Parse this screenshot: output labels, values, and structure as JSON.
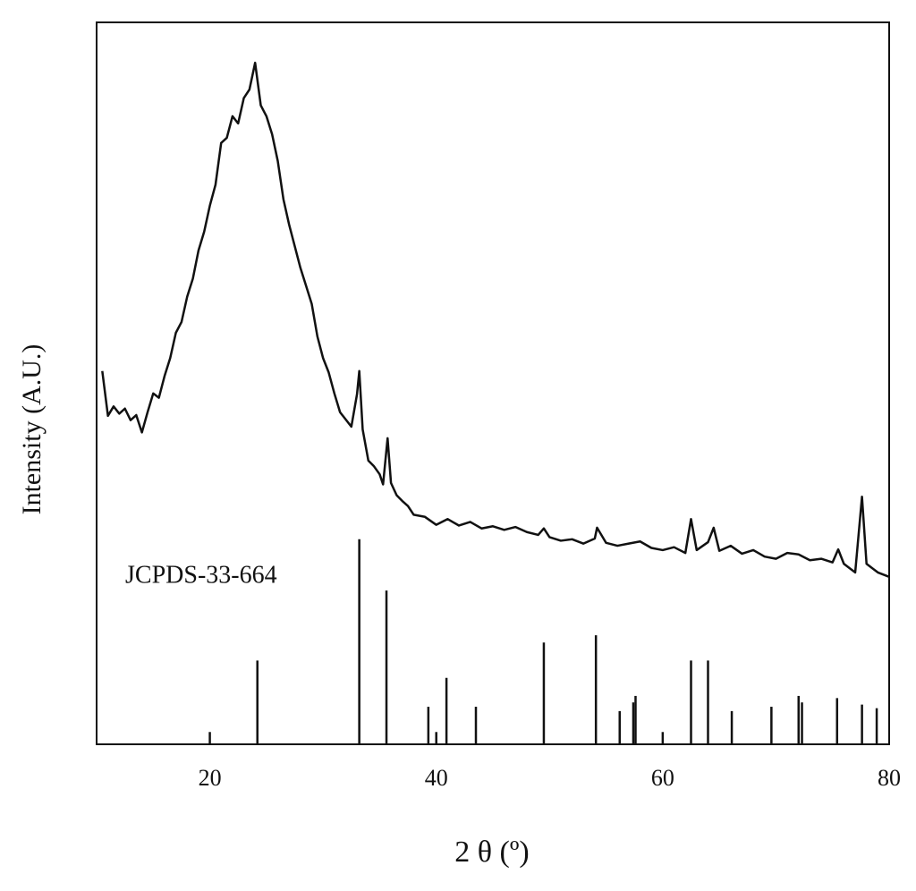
{
  "chart_data": {
    "type": "line",
    "x_label": "2 θ (º)",
    "y_label": "Intensity (A.U.)",
    "color": "#111111",
    "xlim": [
      10,
      80
    ],
    "ylim": [
      0,
      100
    ],
    "xticks": [
      20,
      40,
      60,
      80
    ],
    "x": [
      10.5,
      11,
      11.5,
      12,
      12.5,
      13,
      13.5,
      14,
      14.5,
      15,
      15.5,
      16,
      16.5,
      17,
      17.5,
      18,
      18.5,
      19,
      19.5,
      20,
      20.5,
      21,
      21.5,
      22,
      22.5,
      23,
      23.5,
      24,
      24.5,
      25,
      25.5,
      26,
      26.5,
      27,
      27.5,
      28,
      28.5,
      29,
      29.5,
      30,
      30.5,
      31,
      31.5,
      32,
      32.5,
      33,
      33.2,
      33.5,
      34,
      34.5,
      35,
      35.3,
      35.7,
      36,
      36.5,
      37,
      37.5,
      38,
      39,
      40,
      41,
      42,
      43,
      44,
      45,
      46,
      47,
      48,
      49,
      49.5,
      50,
      51,
      52,
      53,
      54,
      54.2,
      55,
      56,
      57,
      58,
      59,
      60,
      61,
      62,
      62.5,
      63,
      64,
      64.5,
      65,
      66,
      67,
      68,
      69,
      70,
      71,
      72,
      73,
      74,
      75,
      75.5,
      76,
      77,
      77.6,
      78,
      79,
      80
    ],
    "values": [
      51.7,
      45.5,
      46.8,
      45.8,
      46.5,
      44.9,
      45.6,
      43.2,
      46.0,
      48.6,
      48.0,
      51.0,
      53.5,
      57.0,
      58.5,
      62.0,
      64.5,
      68.4,
      71.0,
      74.6,
      77.5,
      83.3,
      84.0,
      87.0,
      86.0,
      89.5,
      90.7,
      94.4,
      88.5,
      87.0,
      84.5,
      80.8,
      75.5,
      72.0,
      69.0,
      66.0,
      63.5,
      61.0,
      56.5,
      53.5,
      51.5,
      48.6,
      46.0,
      45.0,
      44.0,
      48.5,
      51.7,
      43.6,
      39.3,
      38.5,
      37.4,
      36.0,
      42.4,
      36.2,
      34.5,
      33.7,
      33.0,
      31.8,
      31.5,
      30.4,
      31.2,
      30.3,
      30.8,
      29.9,
      30.2,
      29.7,
      30.1,
      29.4,
      29.0,
      29.9,
      28.7,
      28.2,
      28.4,
      27.8,
      28.5,
      30.0,
      27.9,
      27.5,
      27.8,
      28.1,
      27.2,
      26.9,
      27.3,
      26.5,
      31.2,
      26.9,
      28.0,
      30.0,
      26.8,
      27.5,
      26.4,
      26.9,
      26.0,
      25.7,
      26.5,
      26.3,
      25.5,
      25.7,
      25.2,
      27.0,
      25.0,
      23.8,
      34.3,
      25.0,
      23.8,
      23.2
    ],
    "reference": {
      "label": "JCPDS-33-664",
      "x": [
        20,
        24.2,
        33.2,
        35.6,
        39.3,
        40,
        40.9,
        43.5,
        49.5,
        54.1,
        56.2,
        57.4,
        57.6,
        60,
        62.5,
        64,
        66.1,
        69.6,
        72,
        72.3,
        75.4,
        77.6,
        78.9
      ],
      "values": [
        1.7,
        11.6,
        28.4,
        21.3,
        5.2,
        1.7,
        9.2,
        5.2,
        14.1,
        15.1,
        4.6,
        5.8,
        6.7,
        1.7,
        11.6,
        11.6,
        4.6,
        5.2,
        6.7,
        5.8,
        6.4,
        5.5,
        5.0
      ]
    }
  }
}
